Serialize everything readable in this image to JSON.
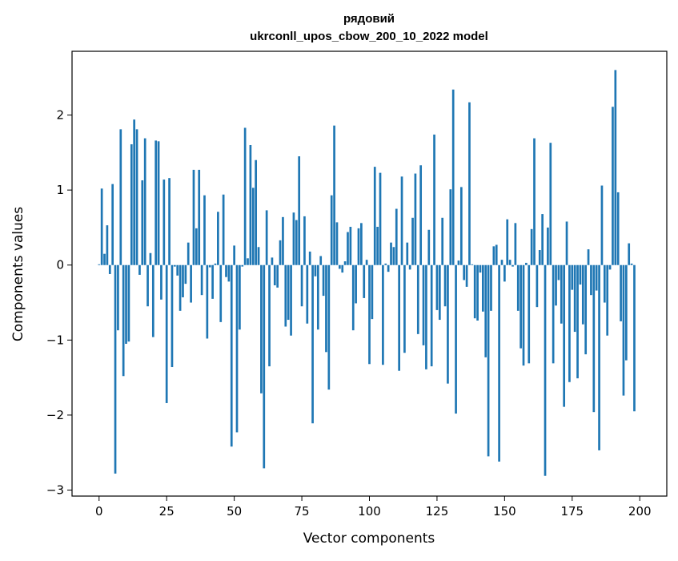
{
  "chart_data": {
    "type": "bar",
    "title": "рядовий",
    "subtitle": "ukrconll_upos_cbow_200_10_2022 model",
    "xlabel": "Vector components",
    "ylabel": "Components values",
    "xlim": [
      -10,
      210
    ],
    "ylim": [
      -3.08,
      2.85
    ],
    "xticks": [
      0,
      25,
      50,
      75,
      100,
      125,
      150,
      175,
      200
    ],
    "yticks": [
      -3,
      -2,
      -1,
      0,
      1,
      2
    ],
    "grid": false,
    "bar_color": "#1f77b4",
    "values": [
      0.01,
      1.02,
      0.15,
      0.53,
      -0.12,
      1.08,
      -2.78,
      -0.87,
      1.81,
      -1.48,
      -1.05,
      -1.02,
      1.61,
      1.94,
      1.81,
      -0.13,
      1.13,
      1.69,
      -0.55,
      0.16,
      -0.96,
      1.66,
      1.65,
      -0.46,
      1.14,
      -1.84,
      1.16,
      -1.36,
      -0.02,
      -0.14,
      -0.61,
      -0.43,
      -0.25,
      0.3,
      -0.5,
      1.27,
      0.49,
      1.27,
      -0.4,
      0.93,
      -0.98,
      -0.03,
      -0.45,
      0.02,
      0.71,
      -0.76,
      0.94,
      -0.16,
      -0.22,
      -2.42,
      0.26,
      -2.23,
      -0.86,
      -0.02,
      1.83,
      0.09,
      1.6,
      1.03,
      1.4,
      0.24,
      -1.71,
      -2.71,
      0.73,
      -1.35,
      0.1,
      -0.27,
      -0.3,
      0.33,
      0.64,
      -0.82,
      -0.73,
      -0.94,
      0.7,
      0.6,
      1.45,
      -0.55,
      0.65,
      -0.78,
      0.18,
      -2.11,
      -0.15,
      -0.86,
      0.12,
      -0.41,
      -1.16,
      -1.66,
      0.93,
      1.86,
      0.57,
      -0.05,
      -0.1,
      0.05,
      0.44,
      0.51,
      -0.87,
      -0.51,
      0.49,
      0.56,
      -0.44,
      0.07,
      -1.32,
      -0.72,
      1.31,
      0.51,
      1.23,
      -1.33,
      0.02,
      -0.09,
      0.3,
      0.24,
      0.75,
      -1.41,
      1.18,
      -1.17,
      0.3,
      -0.06,
      0.63,
      1.22,
      -0.92,
      1.33,
      -1.07,
      -1.39,
      0.47,
      -1.35,
      1.74,
      -0.6,
      -0.73,
      0.63,
      -0.55,
      -1.58,
      1.01,
      2.34,
      -1.98,
      0.06,
      1.04,
      -0.2,
      -0.29,
      2.17,
      0.01,
      -0.71,
      -0.74,
      -0.1,
      -0.62,
      -1.23,
      -2.55,
      -0.61,
      0.25,
      0.27,
      -2.62,
      0.07,
      -0.22,
      0.61,
      0.07,
      -0.02,
      0.56,
      -0.61,
      -1.11,
      -1.34,
      0.03,
      -1.31,
      0.48,
      1.69,
      -0.56,
      0.2,
      0.68,
      -2.81,
      0.5,
      1.63,
      -1.31,
      -0.54,
      -0.2,
      -0.78,
      -1.89,
      0.58,
      -1.56,
      -0.33,
      -0.89,
      -1.51,
      -0.26,
      -0.79,
      -1.19,
      0.21,
      -0.4,
      -1.96,
      -0.34,
      -2.47,
      1.06,
      -0.5,
      -0.94,
      -0.06,
      2.11,
      2.6,
      0.97,
      -0.75,
      -1.74,
      -1.27,
      0.29,
      0.02,
      -1.95
    ]
  }
}
